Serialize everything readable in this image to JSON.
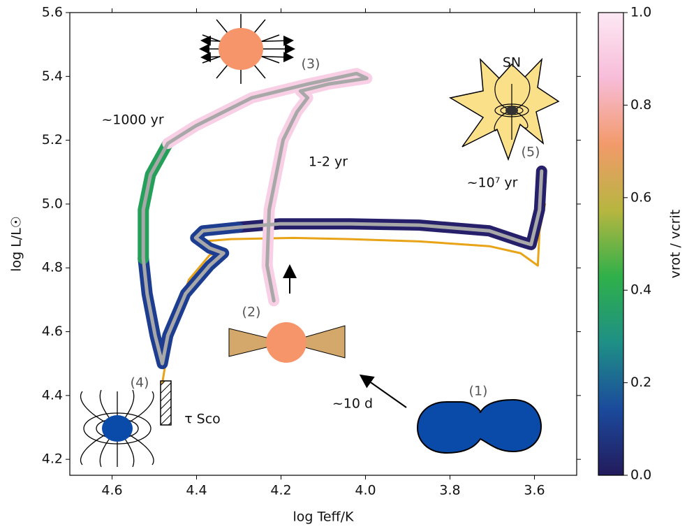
{
  "chart_data": {
    "type": "line",
    "xlabel": "log Teff/K",
    "ylabel": "log L/L☉",
    "xlim": [
      4.7,
      3.5
    ],
    "ylim": [
      4.15,
      5.6
    ],
    "xticks": [
      4.6,
      4.4,
      4.2,
      {
        "value": 4,
        "label": "4.0"
      },
      3.8,
      3.6
    ],
    "yticks": [
      4.2,
      4.4,
      4.6,
      4.8,
      {
        "value": 5,
        "label": "5.0"
      },
      5.2,
      5.4,
      5.6
    ],
    "series": [
      {
        "color": "#e8a317",
        "x": [
          4.481,
          4.46,
          4.418,
          4.369,
          4.336,
          4.377,
          4.385,
          4.319,
          4.17,
          4.038,
          3.873,
          3.707,
          3.633,
          3.592,
          3.588,
          3.575
        ],
        "values": [
          4.439,
          4.61,
          4.763,
          4.84,
          4.855,
          4.868,
          4.883,
          4.89,
          4.894,
          4.89,
          4.883,
          4.868,
          4.846,
          4.807,
          4.916,
          5.0
        ]
      },
      {
        "color": "#26206a",
        "x": [
          3.583,
          3.588,
          3.608,
          3.633,
          3.707,
          3.873,
          4.038,
          4.203,
          4.302
        ],
        "values": [
          5.103,
          4.982,
          4.873,
          4.883,
          4.916,
          4.934,
          4.938,
          4.938,
          4.927
        ]
      },
      {
        "color": "#1d3d90",
        "x": [
          4.302,
          4.385,
          4.402,
          4.369,
          4.336,
          4.369,
          4.426,
          4.468,
          4.481,
          4.498,
          4.517,
          4.526
        ],
        "values": [
          4.927,
          4.916,
          4.894,
          4.862,
          4.846,
          4.807,
          4.719,
          4.588,
          4.5,
          4.588,
          4.719,
          4.829
        ]
      },
      {
        "color": "#25a05a",
        "x": [
          4.526,
          4.526,
          4.509,
          4.468
        ],
        "values": [
          4.829,
          4.982,
          5.092,
          5.19
        ]
      },
      {
        "color": "#f8cfe4",
        "x": [
          4.468,
          4.402,
          4.269,
          4.137,
          4.021,
          3.997,
          4.088,
          4.154,
          4.137,
          4.162,
          4.195,
          4.228,
          4.233,
          4.217
        ],
        "values": [
          5.19,
          5.245,
          5.333,
          5.376,
          5.409,
          5.394,
          5.376,
          5.354,
          5.333,
          5.289,
          5.201,
          4.982,
          4.807,
          4.697
        ]
      }
    ],
    "colorbar": {
      "label": "vrot / vcrit",
      "lim": [
        0,
        1
      ],
      "ticks": [
        {
          "value": 0,
          "label": "0.0"
        },
        0.2,
        0.4,
        0.6,
        0.8,
        {
          "value": 1,
          "label": "1.0"
        }
      ],
      "colors": [
        "#231b5c",
        "#1b4a9c",
        "#1f8f86",
        "#2fb04a",
        "#b6b640",
        "#f29a6a",
        "#f7bcd8",
        "#fde8f4"
      ]
    },
    "annotations": [
      "(1)",
      "(2)",
      "(3)",
      "(4)",
      "(5)",
      "~1000 yr",
      "1-2 yr",
      "~10⁷ yr",
      "τ Sco",
      "~10 d",
      "SN"
    ]
  }
}
